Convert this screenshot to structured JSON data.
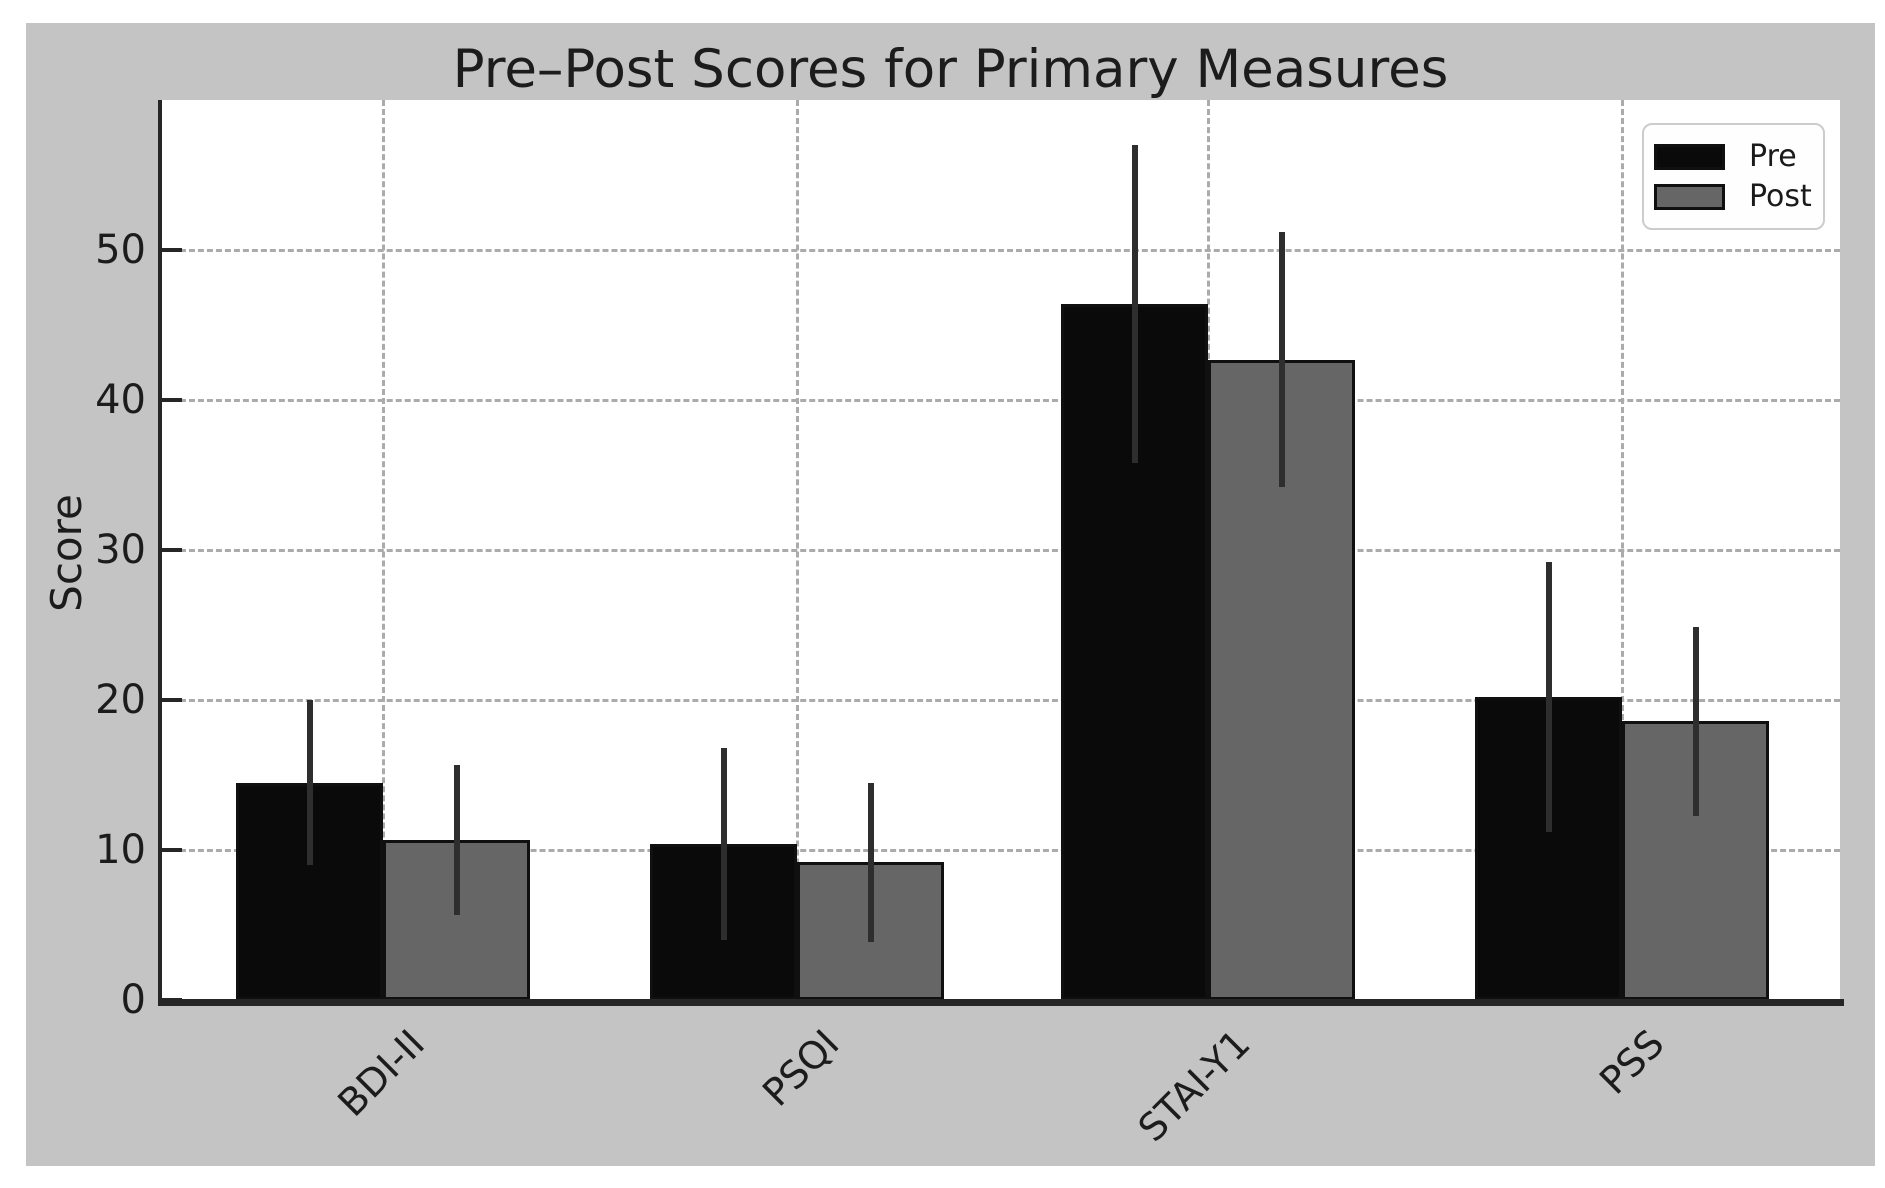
{
  "chart_data": {
    "type": "bar",
    "title": "Pre–Post Scores for Primary Measures",
    "xlabel": "",
    "ylabel": "Score",
    "categories": [
      "BDI-II",
      "PSQI",
      "STAI-Y1",
      "PSS"
    ],
    "series": [
      {
        "name": "Pre",
        "color": "#0a0a0a",
        "values": [
          14.5,
          10.4,
          46.4,
          20.2
        ],
        "errors": [
          5.5,
          6.4,
          10.6,
          9.0
        ]
      },
      {
        "name": "Post",
        "color": "#666666",
        "values": [
          10.7,
          9.2,
          42.7,
          18.6
        ],
        "errors": [
          5.0,
          5.3,
          8.5,
          6.3
        ]
      }
    ],
    "ylim": [
      0,
      60
    ],
    "yticks": [
      0,
      10,
      20,
      30,
      40,
      50
    ],
    "grid": true,
    "grid_style": "dashed",
    "error_bars": true,
    "legend_position": "upper right",
    "bar_edge_color": "#101010",
    "figure_background": "#c4c4c4",
    "plot_background": "#ffffff"
  }
}
